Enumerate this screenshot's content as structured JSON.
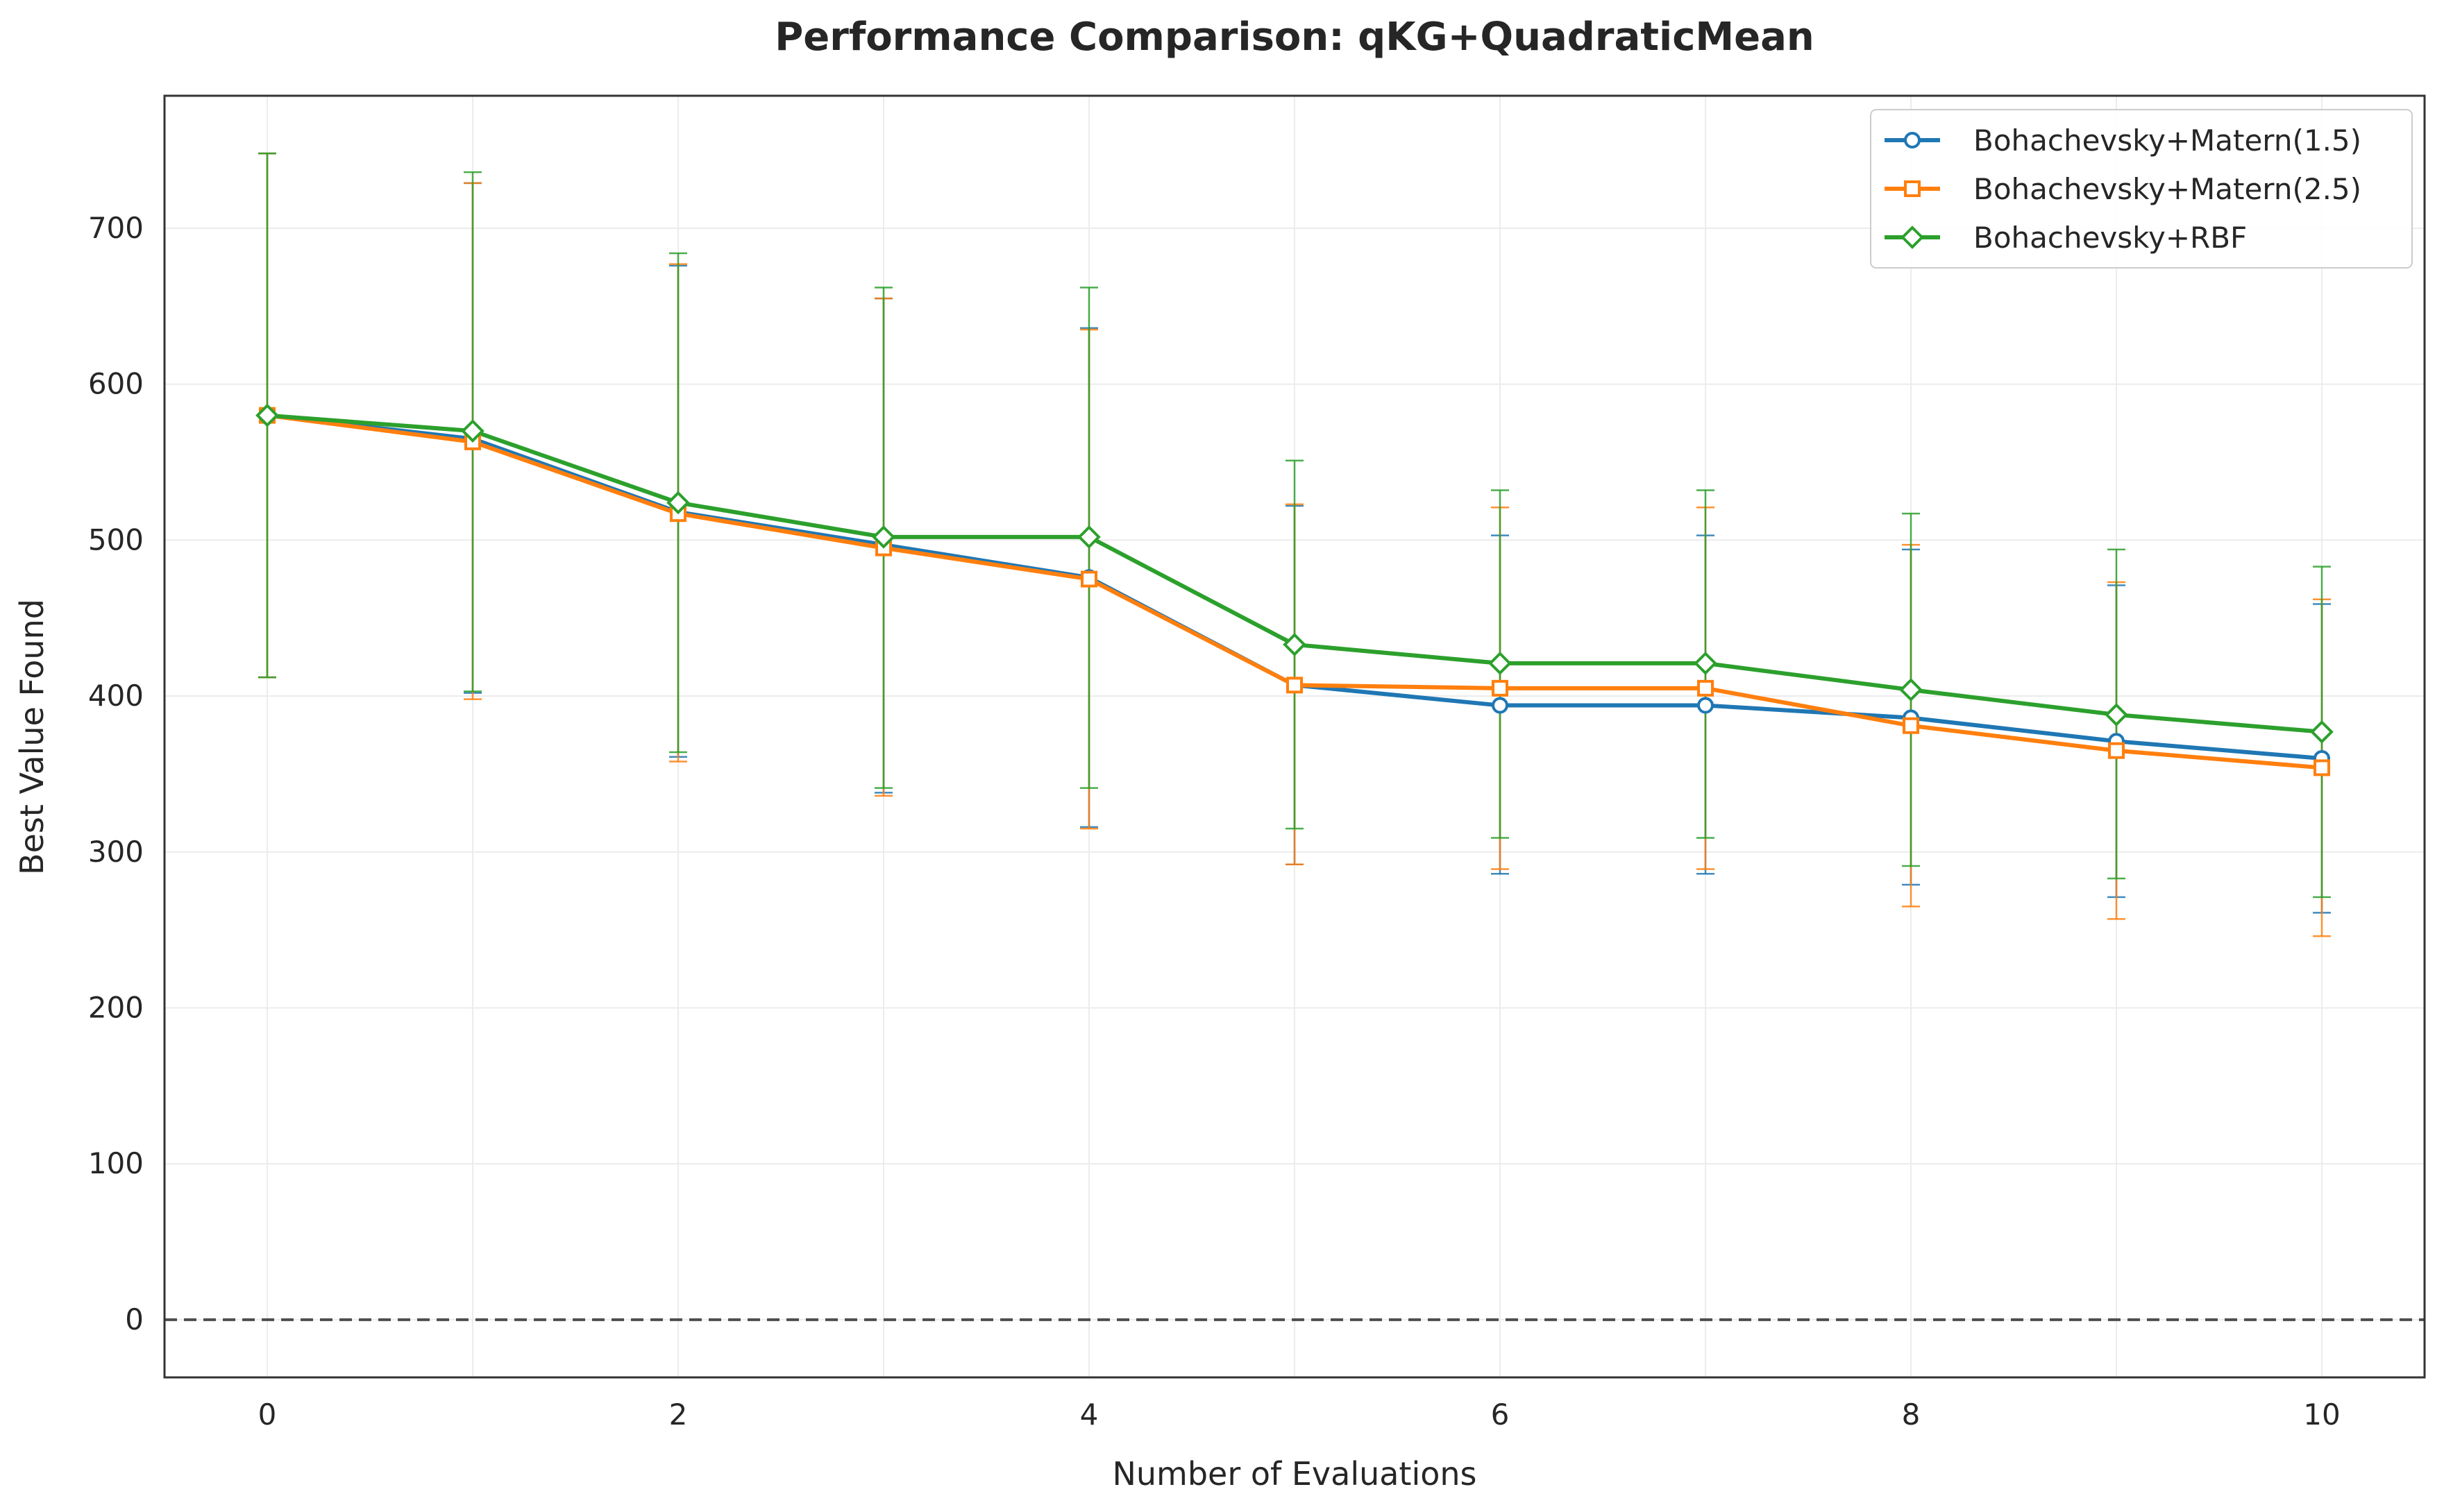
{
  "chart_data": {
    "type": "line",
    "title": "Performance Comparison: qKG+QuadraticMean",
    "xlabel": "Number of Evaluations",
    "ylabel": "Best Value Found",
    "x": [
      0,
      1,
      2,
      3,
      4,
      5,
      6,
      7,
      8,
      9,
      10
    ],
    "xlim": [
      -0.5,
      10.5
    ],
    "ylim": [
      -37,
      785
    ],
    "xticks": [
      "0",
      "2",
      "4",
      "6",
      "8",
      "10"
    ],
    "yticks": [
      "0",
      "100",
      "200",
      "300",
      "400",
      "500",
      "600",
      "700"
    ],
    "grid": true,
    "legend_position": "upper right",
    "reference_line": {
      "y": 0,
      "style": "dashed",
      "color": "#4d4d4d"
    },
    "series": [
      {
        "name": "Bohachevsky+Matern(1.5)",
        "color": "#1f77b4",
        "marker": "circle",
        "values": [
          580,
          565,
          518,
          497,
          476,
          407,
          394,
          394,
          386,
          371,
          360
        ],
        "err_low": [
          412,
          402,
          361,
          338,
          316,
          292,
          286,
          286,
          279,
          271,
          261
        ],
        "err_high": [
          748,
          729,
          676,
          655,
          636,
          522,
          503,
          503,
          494,
          471,
          459
        ]
      },
      {
        "name": "Bohachevsky+Matern(2.5)",
        "color": "#ff7f0e",
        "marker": "square",
        "values": [
          580,
          563,
          517,
          495,
          475,
          407,
          405,
          405,
          381,
          365,
          354
        ],
        "err_low": [
          412,
          398,
          358,
          336,
          315,
          292,
          289,
          289,
          265,
          257,
          246
        ],
        "err_high": [
          748,
          729,
          677,
          655,
          635,
          523,
          521,
          521,
          497,
          473,
          462
        ]
      },
      {
        "name": "Bohachevsky+RBF",
        "color": "#2ca02c",
        "marker": "diamond",
        "values": [
          580,
          570,
          524,
          502,
          502,
          433,
          421,
          421,
          404,
          388,
          377
        ],
        "err_low": [
          412,
          403,
          364,
          341,
          341,
          315,
          309,
          309,
          291,
          283,
          271
        ],
        "err_high": [
          748,
          736,
          684,
          662,
          662,
          551,
          532,
          532,
          517,
          494,
          483
        ]
      }
    ]
  }
}
